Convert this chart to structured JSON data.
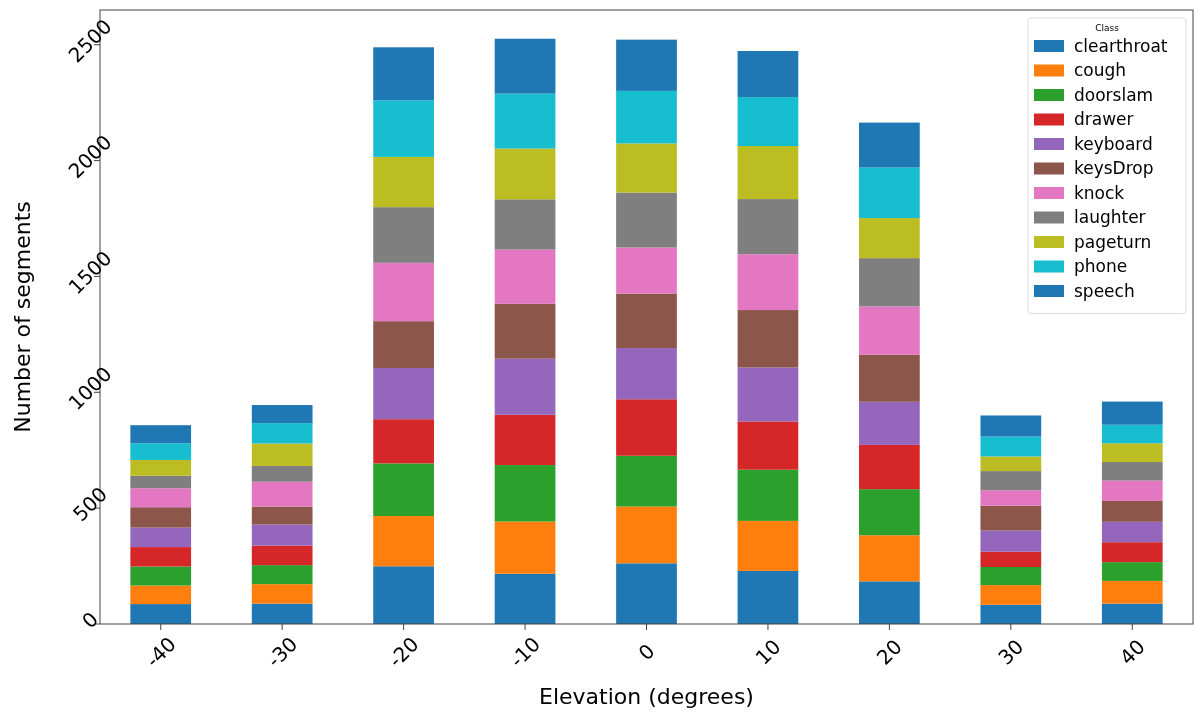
{
  "chart_data": {
    "type": "bar",
    "stacked": true,
    "xlabel": "Elevation (degrees)",
    "ylabel": "Number of segments",
    "legend_title": "Class",
    "legend": "top right",
    "grid": false,
    "categories": [
      "-40",
      "-30",
      "-20",
      "-10",
      "0",
      "10",
      "20",
      "30",
      "40"
    ],
    "ylim": [
      0,
      2650
    ],
    "yticks": [
      0,
      500,
      1000,
      1500,
      2000,
      2500
    ],
    "series": [
      {
        "name": "clearthroat",
        "color": "#1f77b4",
        "values": [
          86,
          88,
          249,
          217,
          262,
          229,
          184,
          83,
          88
        ]
      },
      {
        "name": "cough",
        "color": "#ff7f0e",
        "values": [
          80,
          84,
          217,
          225,
          245,
          216,
          199,
          85,
          98
        ]
      },
      {
        "name": "doorslam",
        "color": "#2ca02c",
        "values": [
          82,
          82,
          227,
          244,
          219,
          221,
          199,
          78,
          81
        ]
      },
      {
        "name": "drawer",
        "color": "#d62728",
        "values": [
          84,
          84,
          191,
          217,
          244,
          208,
          191,
          66,
          86
        ]
      },
      {
        "name": "keyboard",
        "color": "#9467bd",
        "values": [
          84,
          91,
          221,
          242,
          221,
          233,
          186,
          91,
          88
        ]
      },
      {
        "name": "keysDrop",
        "color": "#8c564b",
        "values": [
          88,
          78,
          202,
          237,
          235,
          248,
          203,
          108,
          90
        ]
      },
      {
        "name": "knock",
        "color": "#e377c2",
        "values": [
          82,
          107,
          252,
          234,
          199,
          241,
          209,
          66,
          88
        ]
      },
      {
        "name": "laughter",
        "color": "#7f7f7f",
        "values": [
          54,
          68,
          240,
          217,
          237,
          238,
          208,
          83,
          80
        ]
      },
      {
        "name": "pageturn",
        "color": "#bcbd22",
        "values": [
          68,
          97,
          217,
          219,
          212,
          229,
          173,
          63,
          81
        ]
      },
      {
        "name": "phone",
        "color": "#17becf",
        "values": [
          72,
          88,
          244,
          237,
          227,
          211,
          218,
          86,
          80
        ]
      },
      {
        "name": "speech",
        "color": "#1f77b4",
        "values": [
          78,
          78,
          229,
          237,
          221,
          199,
          194,
          91,
          100
        ]
      }
    ]
  }
}
